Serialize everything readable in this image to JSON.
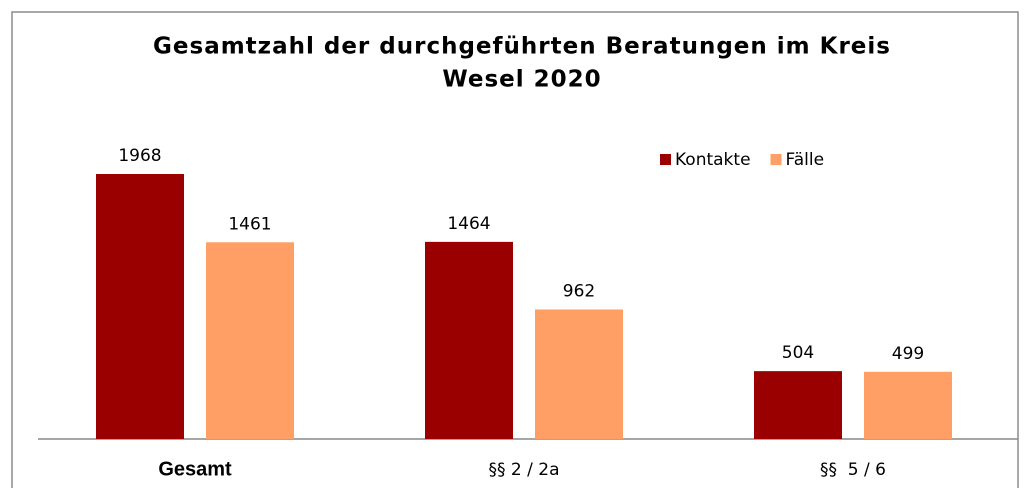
{
  "chart_data": {
    "type": "bar",
    "title": [
      "Gesamtzahl der durchgeführten Beratungen im Kreis",
      "Wesel 2020"
    ],
    "categories": [
      "Gesamt",
      "§§ 2 / 2a",
      "§§  5 / 6"
    ],
    "series": [
      {
        "name": "Kontakte",
        "color": "#9b0000",
        "values": [
          1968,
          1464,
          504
        ]
      },
      {
        "name": "Fälle",
        "color": "#ff9f66",
        "values": [
          1461,
          962,
          499
        ]
      }
    ],
    "legend": "top-right"
  }
}
